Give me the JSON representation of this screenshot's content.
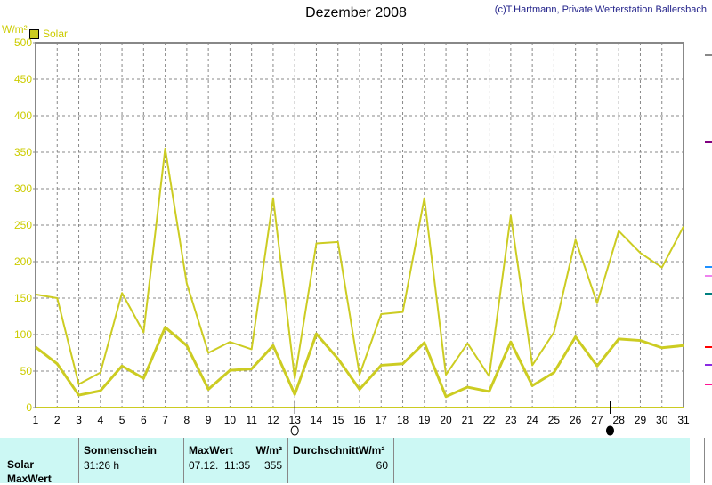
{
  "header": {
    "title": "Dezember 2008",
    "credit": "(c)T.Hartmann, Private Wetterstation Ballersbach"
  },
  "chart_data": {
    "type": "line",
    "title": "Dezember 2008",
    "ylabel": "W/m²",
    "ylim": [
      0,
      500
    ],
    "yticks": [
      0,
      50,
      100,
      150,
      200,
      250,
      300,
      350,
      400,
      450,
      500
    ],
    "x": [
      1,
      2,
      3,
      4,
      5,
      6,
      7,
      8,
      9,
      10,
      11,
      12,
      13,
      14,
      15,
      16,
      17,
      18,
      19,
      20,
      21,
      22,
      23,
      24,
      25,
      26,
      27,
      28,
      29,
      30,
      31
    ],
    "legend": [
      "Solar"
    ],
    "legend_position": "top-left",
    "grid": true,
    "series": [
      {
        "name": "Solar MaxWert",
        "values": [
          155,
          150,
          32,
          48,
          157,
          103,
          355,
          170,
          75,
          90,
          80,
          287,
          40,
          225,
          227,
          45,
          128,
          131,
          287,
          45,
          88,
          43,
          263,
          58,
          103,
          230,
          143,
          242,
          212,
          192,
          248
        ]
      },
      {
        "name": "Solar",
        "values": [
          83,
          60,
          17,
          23,
          57,
          40,
          110,
          85,
          25,
          51,
          53,
          85,
          18,
          101,
          67,
          25,
          58,
          60,
          89,
          15,
          28,
          22,
          90,
          30,
          48,
          97,
          57,
          94,
          92,
          82,
          85
        ]
      }
    ],
    "moon_phases": [
      {
        "day": 13,
        "phase": "full"
      },
      {
        "day": 27.6,
        "phase": "new"
      }
    ],
    "color": "#cccc22"
  },
  "table": {
    "row_labels": [
      "Solar",
      "MaxWert"
    ],
    "sunshine_header": "Sonnenschein",
    "sunshine_value": "31:26 h",
    "max_header": "MaxWert",
    "max_unit": "W/m²",
    "max_time": "07.12.  11:35",
    "max_value": "355",
    "avg_header": "DurchschnittW/m²",
    "avg_value": "60"
  }
}
